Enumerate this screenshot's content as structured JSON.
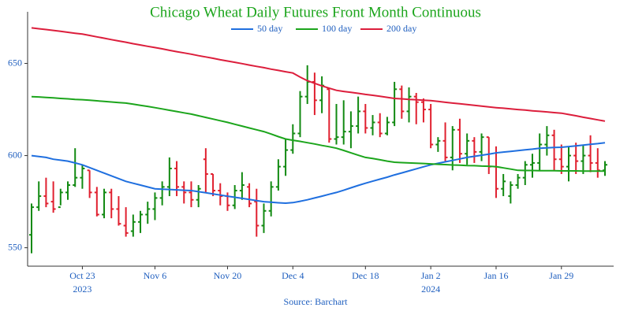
{
  "chart_data": {
    "type": "ohlc",
    "title": "Chicago Wheat Daily Futures Front Month Continuous",
    "title_color": "#1ca51c",
    "source": "Source: Barchart",
    "x": [
      "2023-10-12",
      "2023-10-13",
      "2023-10-16",
      "2023-10-17",
      "2023-10-18",
      "2023-10-19",
      "2023-10-20",
      "2023-10-23",
      "2023-10-24",
      "2023-10-25",
      "2023-10-26",
      "2023-10-27",
      "2023-10-30",
      "2023-10-31",
      "2023-11-01",
      "2023-11-02",
      "2023-11-03",
      "2023-11-06",
      "2023-11-07",
      "2023-11-08",
      "2023-11-09",
      "2023-11-10",
      "2023-11-13",
      "2023-11-14",
      "2023-11-15",
      "2023-11-16",
      "2023-11-17",
      "2023-11-20",
      "2023-11-21",
      "2023-11-22",
      "2023-11-24",
      "2023-11-27",
      "2023-11-28",
      "2023-11-29",
      "2023-11-30",
      "2023-12-01",
      "2023-12-04",
      "2023-12-05",
      "2023-12-06",
      "2023-12-07",
      "2023-12-08",
      "2023-12-11",
      "2023-12-12",
      "2023-12-13",
      "2023-12-14",
      "2023-12-15",
      "2023-12-18",
      "2023-12-19",
      "2023-12-20",
      "2023-12-21",
      "2023-12-22",
      "2023-12-26",
      "2023-12-27",
      "2023-12-28",
      "2023-12-29",
      "2024-01-02",
      "2024-01-03",
      "2024-01-04",
      "2024-01-05",
      "2024-01-08",
      "2024-01-09",
      "2024-01-10",
      "2024-01-11",
      "2024-01-12",
      "2024-01-16",
      "2024-01-17",
      "2024-01-18",
      "2024-01-19",
      "2024-01-22",
      "2024-01-23",
      "2024-01-24",
      "2024-01-25",
      "2024-01-26",
      "2024-01-29",
      "2024-01-30",
      "2024-01-31",
      "2024-02-01",
      "2024-02-02",
      "2024-02-05",
      "2024-02-06"
    ],
    "open": [
      557,
      572,
      578,
      575,
      572,
      580,
      584,
      588,
      592,
      580,
      568,
      580,
      571,
      562,
      559,
      564,
      568,
      571,
      577,
      583,
      593,
      583,
      580,
      576,
      598,
      590,
      581,
      578,
      573,
      581,
      583,
      575,
      562,
      570,
      583,
      594,
      603,
      612,
      632,
      640,
      630,
      636,
      609,
      610,
      613,
      616,
      624,
      615,
      618,
      612,
      618,
      636,
      624,
      632,
      629,
      625,
      606,
      608,
      599,
      614,
      601,
      608,
      602,
      610,
      594,
      582,
      578,
      584,
      588,
      595,
      596,
      606,
      611,
      598,
      594,
      600,
      597,
      600,
      596,
      592
    ],
    "high": [
      574,
      586,
      588,
      586,
      582,
      586,
      604,
      595,
      592,
      583,
      582,
      582,
      578,
      572,
      568,
      570,
      575,
      580,
      586,
      599,
      597,
      586,
      586,
      584,
      604,
      590,
      585,
      580,
      584,
      591,
      585,
      582,
      574,
      586,
      598,
      609,
      617,
      635,
      649,
      645,
      643,
      636,
      628,
      630,
      624,
      632,
      628,
      622,
      623,
      621,
      640,
      638,
      637,
      634,
      631,
      628,
      610,
      618,
      616,
      620,
      612,
      610,
      612,
      610,
      605,
      590,
      586,
      590,
      597,
      601,
      612,
      616,
      614,
      606,
      605,
      607,
      606,
      611,
      604,
      597
    ],
    "low": [
      547,
      570,
      572,
      569,
      573,
      576,
      583,
      582,
      577,
      567,
      566,
      566,
      562,
      556,
      556,
      558,
      563,
      565,
      573,
      578,
      578,
      574,
      572,
      572,
      580,
      578,
      573,
      570,
      571,
      576,
      572,
      556,
      558,
      567,
      581,
      589,
      601,
      610,
      628,
      622,
      623,
      607,
      606,
      606,
      604,
      612,
      612,
      611,
      610,
      611,
      616,
      620,
      618,
      617,
      618,
      604,
      602,
      597,
      592,
      596,
      595,
      596,
      597,
      590,
      577,
      578,
      574,
      582,
      584,
      588,
      592,
      600,
      592,
      590,
      586,
      590,
      590,
      591,
      588,
      589
    ],
    "close": [
      572,
      578,
      574,
      571,
      580,
      584,
      588,
      593,
      580,
      568,
      580,
      571,
      563,
      558,
      564,
      568,
      571,
      577,
      583,
      593,
      583,
      580,
      576,
      582,
      590,
      581,
      578,
      573,
      581,
      584,
      574,
      562,
      570,
      583,
      594,
      603,
      612,
      632,
      640,
      630,
      638,
      609,
      610,
      613,
      616,
      624,
      615,
      618,
      612,
      618,
      636,
      624,
      632,
      629,
      625,
      606,
      608,
      599,
      614,
      601,
      608,
      602,
      610,
      594,
      582,
      586,
      584,
      588,
      595,
      596,
      606,
      611,
      598,
      594,
      600,
      597,
      600,
      596,
      592,
      595
    ],
    "increasing_color": "#128a12",
    "decreasing_color": "#e0202f",
    "series": [
      {
        "name": "50 day",
        "color": "#1f6fdf",
        "values": [
          600,
          599.5,
          599,
          598,
          597.5,
          597,
          596,
          595,
          593.5,
          592,
          590.5,
          589,
          587.5,
          586,
          585,
          584,
          583,
          582,
          581.8,
          581.6,
          581.4,
          581.2,
          581,
          580.4,
          579.8,
          579.2,
          578.6,
          578,
          577.4,
          576.8,
          576.2,
          575.6,
          575,
          574.7,
          574.4,
          574.2,
          574.5,
          575.2,
          576,
          577,
          578,
          579,
          580,
          581.2,
          582.5,
          583.8,
          585,
          586.1,
          587.2,
          588.3,
          589.5,
          590.6,
          591.7,
          592.8,
          593.9,
          595,
          595.8,
          596.6,
          597.4,
          598.2,
          599,
          599.6,
          600.2,
          600.8,
          601.5,
          601.9,
          602.3,
          602.7,
          603.1,
          603.5,
          604,
          604.2,
          604.4,
          604.5,
          604.9,
          605.3,
          605.7,
          606.1,
          606.5,
          607
        ]
      },
      {
        "name": "100 day",
        "color": "#1ca51c",
        "values": [
          632,
          631.8,
          631.5,
          631.3,
          631,
          630.8,
          630.5,
          630.3,
          630,
          629.7,
          629.4,
          629.1,
          628.8,
          628.5,
          627.9,
          627.3,
          626.7,
          626,
          625.3,
          624.6,
          623.9,
          623.2,
          622.5,
          621.6,
          620.7,
          619.8,
          618.9,
          618,
          617,
          616,
          615,
          614,
          613,
          611.7,
          610.3,
          609,
          608.3,
          607.7,
          607,
          606.3,
          605.5,
          604.8,
          604,
          602.8,
          601.5,
          600.2,
          599,
          598.4,
          597.7,
          597,
          596.4,
          596.2,
          596,
          595.9,
          595.7,
          595.5,
          595.3,
          595.1,
          594.9,
          594.8,
          594.6,
          594.5,
          594.3,
          594.2,
          594,
          593.3,
          592.7,
          592,
          591.9,
          591.9,
          591.8,
          591.8,
          591.8,
          591.7,
          591.7,
          591.7,
          591.6,
          591.6,
          591.6,
          591.6
        ]
      },
      {
        "name": "200 day",
        "color": "#dc1e3c",
        "values": [
          669.3,
          668.8,
          668.4,
          667.9,
          667.4,
          666.9,
          666.4,
          665.9,
          665.2,
          664.4,
          663.7,
          662.9,
          662.2,
          661.5,
          660.7,
          660,
          659.3,
          658.6,
          657.9,
          657.1,
          656.4,
          655.7,
          655,
          654.2,
          653.5,
          652.8,
          652,
          651.3,
          650.6,
          649.9,
          649.1,
          648.4,
          647.7,
          646.9,
          646.2,
          645.5,
          644.8,
          642.6,
          640.6,
          639.2,
          637.8,
          636.6,
          635.4,
          634.8,
          634.3,
          633.8,
          633.2,
          632.7,
          632.2,
          631.6,
          631,
          630.8,
          630.5,
          630.3,
          630,
          629.8,
          629.4,
          628.9,
          628.5,
          628.1,
          627.7,
          627.3,
          626.8,
          626.4,
          626,
          625.7,
          625.3,
          625,
          624.7,
          624.3,
          624,
          623.7,
          623.3,
          623,
          622.3,
          621.6,
          620.8,
          620.1,
          619.4,
          618.7
        ]
      }
    ],
    "xticks": [
      {
        "value": "2023-10-23",
        "label": "Oct 23\n2023"
      },
      {
        "value": "2023-11-06",
        "label": "Nov 6"
      },
      {
        "value": "2023-11-20",
        "label": "Nov 20"
      },
      {
        "value": "2023-12-04",
        "label": "Dec 4"
      },
      {
        "value": "2023-12-18",
        "label": "Dec 18"
      },
      {
        "value": "2024-01-02",
        "label": "Jan 2\n2024"
      },
      {
        "value": "2024-01-16",
        "label": "Jan 16"
      },
      {
        "value": "2024-01-29",
        "label": "Jan 29"
      }
    ],
    "ylim": [
      540,
      678
    ],
    "yticks": [
      550,
      600,
      650
    ],
    "grid": false
  }
}
